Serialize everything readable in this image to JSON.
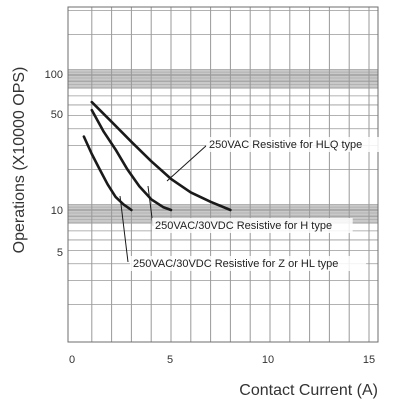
{
  "chart_data": {
    "type": "line",
    "xlabel": "Contact Current (A)",
    "ylabel": "Operations (X10000 OPS)",
    "x_ticks": [
      "0",
      "5",
      "10",
      "15"
    ],
    "y_ticks": [
      "100",
      "50",
      "10",
      "5"
    ],
    "xlim": [
      0,
      16
    ],
    "ylim": [
      1,
      300
    ],
    "y_scale": "log",
    "grid": true,
    "series": [
      {
        "name": "250VAC Resistive for HLQ type",
        "x": [
          1.0,
          2.0,
          3.0,
          4.0,
          5.0,
          6.0,
          7.0,
          8.0
        ],
        "y": [
          63,
          45,
          32,
          23,
          17,
          13.5,
          11.5,
          10
        ]
      },
      {
        "name": "250VAC/30VDC Resistive for H type",
        "x": [
          1.0,
          1.6,
          2.2,
          2.8,
          3.4,
          4.0,
          4.6,
          5.0
        ],
        "y": [
          55,
          38,
          28,
          20,
          15,
          12,
          10.5,
          10
        ]
      },
      {
        "name": "250VAC/30VDC Resistive for Z or HL type",
        "x": [
          0.6,
          1.0,
          1.4,
          1.8,
          2.2,
          2.6,
          3.0
        ],
        "y": [
          35,
          26,
          20,
          15.5,
          12.5,
          11,
          10
        ]
      }
    ],
    "colors": {
      "band": "#c9c9c9",
      "band_border": "#ababab",
      "grid": "#999999",
      "line": "#1a1a1a"
    }
  }
}
